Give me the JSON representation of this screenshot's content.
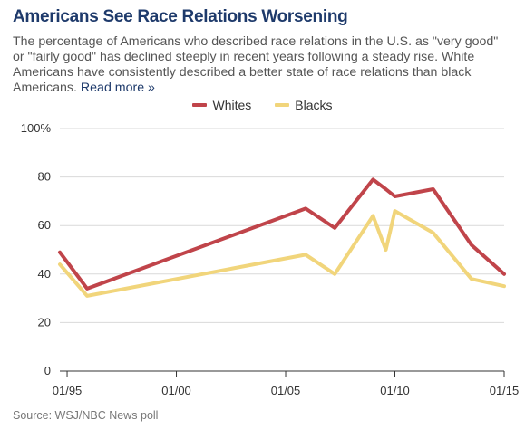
{
  "title": "Americans See Race Relations Worsening",
  "subtitle": "The percentage of Americans who described race relations in the U.S. as \"very good\" or \"fairly good\" has declined steeply in recent years following a steady rise. White Americans have consistently described a better state of race relations than black Americans.",
  "read_more": "Read more »",
  "source": "Source: WSJ/NBC News poll",
  "colors": {
    "whites": "#c0444a",
    "blacks": "#f1d57b",
    "grid": "#d9d9d9",
    "axis": "#333333"
  },
  "chart_data": {
    "type": "line",
    "xlabel": "",
    "ylabel": "",
    "ylim": [
      0,
      100
    ],
    "y_ticks": [
      0,
      20,
      40,
      60,
      80,
      100
    ],
    "y_tick_labels": [
      "0",
      "20",
      "40",
      "60",
      "80",
      "100%"
    ],
    "x_range": [
      "1994-09",
      "2015-01"
    ],
    "x_ticks": [
      "1995-01",
      "2000-01",
      "2005-01",
      "2010-01",
      "2015-01"
    ],
    "x_tick_labels": [
      "01/95",
      "01/00",
      "01/05",
      "01/10",
      "01/15"
    ],
    "legend_position": "top-center",
    "grid": true,
    "series": [
      {
        "name": "Whites",
        "points": [
          [
            "1994-09",
            49
          ],
          [
            "1995-12",
            34
          ],
          [
            "2005-12",
            67
          ],
          [
            "2007-04",
            59
          ],
          [
            "2009-01",
            79
          ],
          [
            "2009-08",
            75
          ],
          [
            "2010-01",
            72
          ],
          [
            "2011-10",
            75
          ],
          [
            "2013-07",
            52
          ],
          [
            "2015-01",
            40
          ]
        ]
      },
      {
        "name": "Blacks",
        "points": [
          [
            "1994-09",
            44
          ],
          [
            "1995-12",
            31
          ],
          [
            "2005-12",
            48
          ],
          [
            "2007-04",
            40
          ],
          [
            "2009-01",
            64
          ],
          [
            "2009-08",
            50
          ],
          [
            "2010-01",
            66
          ],
          [
            "2011-10",
            57
          ],
          [
            "2013-07",
            38
          ],
          [
            "2015-01",
            35
          ]
        ]
      }
    ]
  }
}
